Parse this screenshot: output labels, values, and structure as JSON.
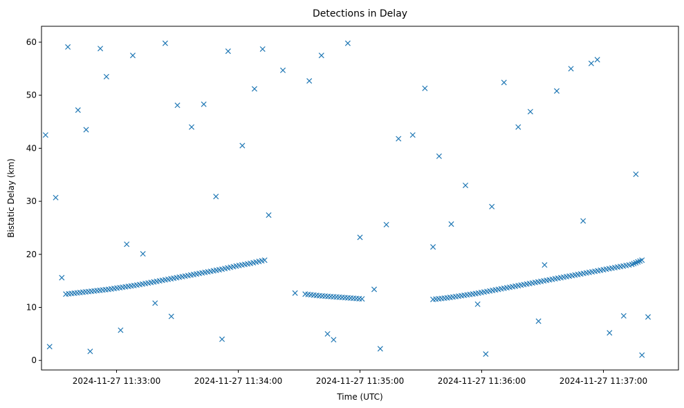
{
  "chart_data": {
    "type": "scatter",
    "title": "Detections in Delay",
    "xlabel": "Time (UTC)",
    "ylabel": "Bistatic Delay (km)",
    "x_ticks": [
      "2024-11-27 11:33:00",
      "2024-11-27 11:34:00",
      "2024-11-27 11:35:00",
      "2024-11-27 11:36:00",
      "2024-11-27 11:37:00"
    ],
    "y_ticks": [
      0,
      10,
      20,
      30,
      40,
      50,
      60
    ],
    "xlim": [
      "2024-11-27 11:32:23",
      "2024-11-27 11:37:37"
    ],
    "ylim": [
      -1.8,
      63
    ],
    "marker": "x",
    "color": "#1f77b4",
    "grid": false,
    "series": [
      {
        "values_note_track": "target track: approx. 12.5 km at 11:32:35 rising to ~19 km at 11:34:17, falling 12.5 km at 11:34:33 to ~11.5 km at 11:35:03, then 11.5 km at 11:35:35 rising to ~19 km at 11:37:20",
        "track_x": [
          "2024-11-27 11:32:35",
          "2024-11-27 11:32:42",
          "2024-11-27 11:32:49",
          "2024-11-27 11:32:56",
          "2024-11-27 11:33:03",
          "2024-11-27 11:33:10",
          "2024-11-27 11:33:17",
          "2024-11-27 11:33:24",
          "2024-11-27 11:33:31",
          "2024-11-27 11:33:38",
          "2024-11-27 11:33:45",
          "2024-11-27 11:33:52",
          "2024-11-27 11:33:59",
          "2024-11-27 11:34:06",
          "2024-11-27 11:34:13",
          "2024-11-27 11:34:33",
          "2024-11-27 11:34:40",
          "2024-11-27 11:34:47",
          "2024-11-27 11:34:54",
          "2024-11-27 11:35:01",
          "2024-11-27 11:35:36",
          "2024-11-27 11:35:43",
          "2024-11-27 11:35:50",
          "2024-11-27 11:35:57",
          "2024-11-27 11:36:04",
          "2024-11-27 11:36:11",
          "2024-11-27 11:36:18",
          "2024-11-27 11:36:25",
          "2024-11-27 11:36:32",
          "2024-11-27 11:36:39",
          "2024-11-27 11:36:46",
          "2024-11-27 11:36:53",
          "2024-11-27 11:37:00",
          "2024-11-27 11:37:07",
          "2024-11-27 11:37:14",
          "2024-11-27 11:37:19"
        ],
        "track_y": [
          12.5,
          12.8,
          13.1,
          13.4,
          13.8,
          14.2,
          14.7,
          15.2,
          15.7,
          16.2,
          16.7,
          17.2,
          17.8,
          18.3,
          18.9,
          12.5,
          12.2,
          12.0,
          11.8,
          11.6,
          11.5,
          11.8,
          12.2,
          12.6,
          13.1,
          13.6,
          14.1,
          14.6,
          15.1,
          15.6,
          16.1,
          16.6,
          17.1,
          17.6,
          18.1,
          18.9
        ],
        "noise_x": [
          "2024-11-27 11:32:25",
          "2024-11-27 11:32:30",
          "2024-11-27 11:32:36",
          "2024-11-27 11:32:41",
          "2024-11-27 11:32:45",
          "2024-11-27 11:32:52",
          "2024-11-27 11:32:55",
          "2024-11-27 11:33:02",
          "2024-11-27 11:33:08",
          "2024-11-27 11:33:13",
          "2024-11-27 11:33:19",
          "2024-11-27 11:33:24",
          "2024-11-27 11:33:30",
          "2024-11-27 11:33:37",
          "2024-11-27 11:33:43",
          "2024-11-27 11:33:49",
          "2024-11-27 11:33:55",
          "2024-11-27 11:34:02",
          "2024-11-27 11:34:08",
          "2024-11-27 11:34:15",
          "2024-11-27 11:34:22",
          "2024-11-27 11:34:28",
          "2024-11-27 11:34:35",
          "2024-11-27 11:34:41",
          "2024-11-27 11:34:47",
          "2024-11-27 11:34:54",
          "2024-11-27 11:35:00",
          "2024-11-27 11:35:07",
          "2024-11-27 11:35:13",
          "2024-11-27 11:35:19",
          "2024-11-27 11:35:26",
          "2024-11-27 11:35:32",
          "2024-11-27 11:35:39",
          "2024-11-27 11:35:45",
          "2024-11-27 11:35:52",
          "2024-11-27 11:35:58",
          "2024-11-27 11:36:05",
          "2024-11-27 11:36:11",
          "2024-11-27 11:36:18",
          "2024-11-27 11:36:24",
          "2024-11-27 11:36:31",
          "2024-11-27 11:36:37",
          "2024-11-27 11:36:44",
          "2024-11-27 11:36:50",
          "2024-11-27 11:36:57",
          "2024-11-27 11:37:03",
          "2024-11-27 11:37:10",
          "2024-11-27 11:37:16",
          "2024-11-27 11:37:22",
          "2024-11-27 11:32:27",
          "2024-11-27 11:32:33",
          "2024-11-27 11:32:47",
          "2024-11-27 11:33:05",
          "2024-11-27 11:33:27",
          "2024-11-27 11:33:52",
          "2024-11-27 11:34:12",
          "2024-11-27 11:34:44",
          "2024-11-27 11:35:10",
          "2024-11-27 11:35:36",
          "2024-11-27 11:36:02",
          "2024-11-27 11:36:28",
          "2024-11-27 11:36:54",
          "2024-11-27 11:37:19"
        ],
        "noise_y": [
          42.5,
          30.7,
          59.1,
          47.2,
          43.5,
          58.8,
          53.5,
          5.7,
          57.5,
          20.1,
          10.8,
          59.8,
          48.1,
          44.0,
          48.3,
          30.9,
          58.3,
          40.5,
          51.2,
          27.4,
          54.7,
          12.7,
          52.7,
          57.5,
          3.9,
          59.8,
          23.2,
          13.4,
          25.6,
          41.8,
          42.5,
          51.3,
          38.5,
          25.7,
          33.0,
          10.6,
          29.0,
          52.4,
          44.0,
          46.9,
          18.0,
          50.8,
          55.0,
          26.3,
          56.7,
          5.2,
          8.4,
          35.1,
          8.2,
          2.6,
          15.6,
          1.7,
          21.9,
          8.3,
          4.0,
          58.7,
          5.0,
          2.2,
          21.4,
          1.2,
          7.4,
          56.0,
          1.0
        ]
      }
    ]
  }
}
